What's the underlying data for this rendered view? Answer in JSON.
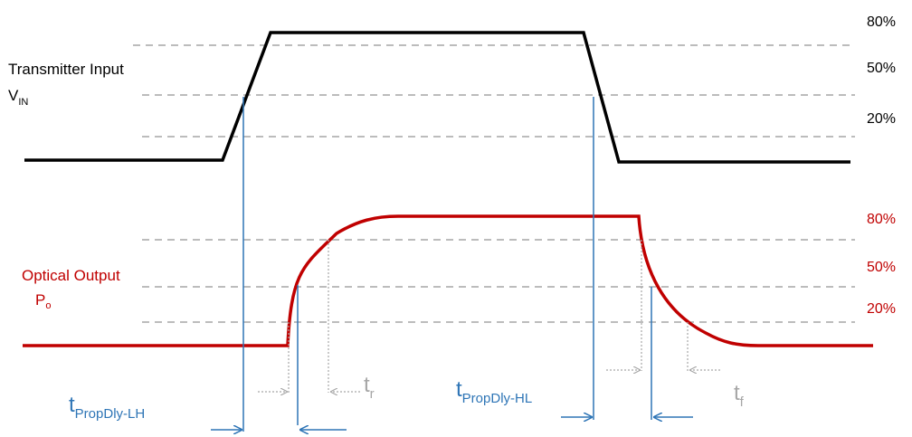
{
  "input": {
    "label_line1": "Transmitter Input",
    "label_v": "V",
    "label_v_sub": "IN",
    "levels": [
      "80%",
      "50%",
      "20%"
    ]
  },
  "output": {
    "label_line1": "Optical Output",
    "label_p": "P",
    "label_p_sub": "o",
    "levels": [
      "80%",
      "50%",
      "20%"
    ]
  },
  "timing": {
    "prop_lh_main": "t",
    "prop_lh_sub": "PropDly-LH",
    "prop_hl_main": "t",
    "prop_hl_sub": "PropDly-HL",
    "rise_main": "t",
    "rise_sub": "r",
    "fall_main": "t",
    "fall_sub": "f"
  },
  "colors": {
    "input_wave": "#000000",
    "output_wave": "#c00000",
    "output_text": "#c00000",
    "timing_blue": "#2e75b6",
    "ref_gray": "#a6a6a6",
    "small_arrow_gray": "#a6a6a6"
  }
}
